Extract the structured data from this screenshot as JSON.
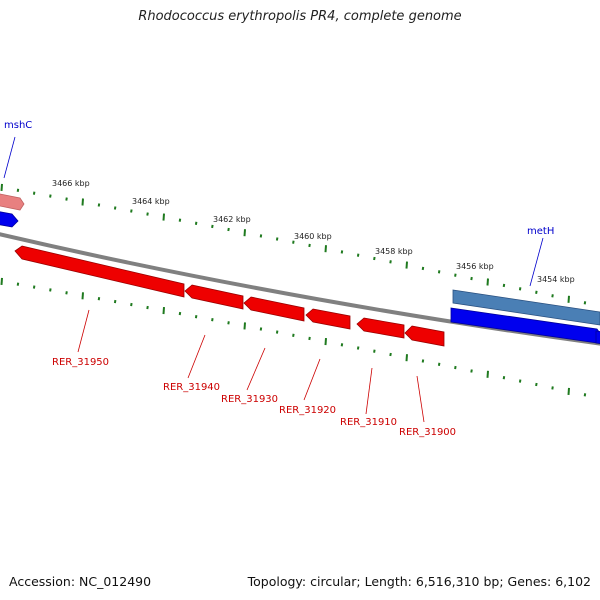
{
  "title": "Rhodococcus erythropolis PR4, complete genome",
  "footer": {
    "accession": "Accession: NC_012490",
    "summary": "Topology: circular; Length: 6,516,310 bp; Genes: 6,102"
  },
  "scale": {
    "unit": "kbp",
    "labels": [
      "3466 kbp",
      "3464 kbp",
      "3462 kbp",
      "3460 kbp",
      "3458 kbp",
      "3456 kbp",
      "3454 kbp"
    ]
  },
  "genes": {
    "top_labels": [
      "mshC",
      "metH"
    ],
    "bottom_labels": [
      "RER_31950",
      "RER_31940",
      "RER_31930",
      "RER_31920",
      "RER_31910",
      "RER_31900"
    ]
  },
  "colors": {
    "backbone": "#808080",
    "tick": "#1f7a1f",
    "forward_gene": "#0000ee",
    "forward_gene_faded": "#4a7fb5",
    "reverse_gene": "#ee0000",
    "reverse_gene_faded": "#e88080",
    "label_forward": "#0000cc",
    "label_reverse": "#cc0000",
    "scale_label": "#222222"
  }
}
